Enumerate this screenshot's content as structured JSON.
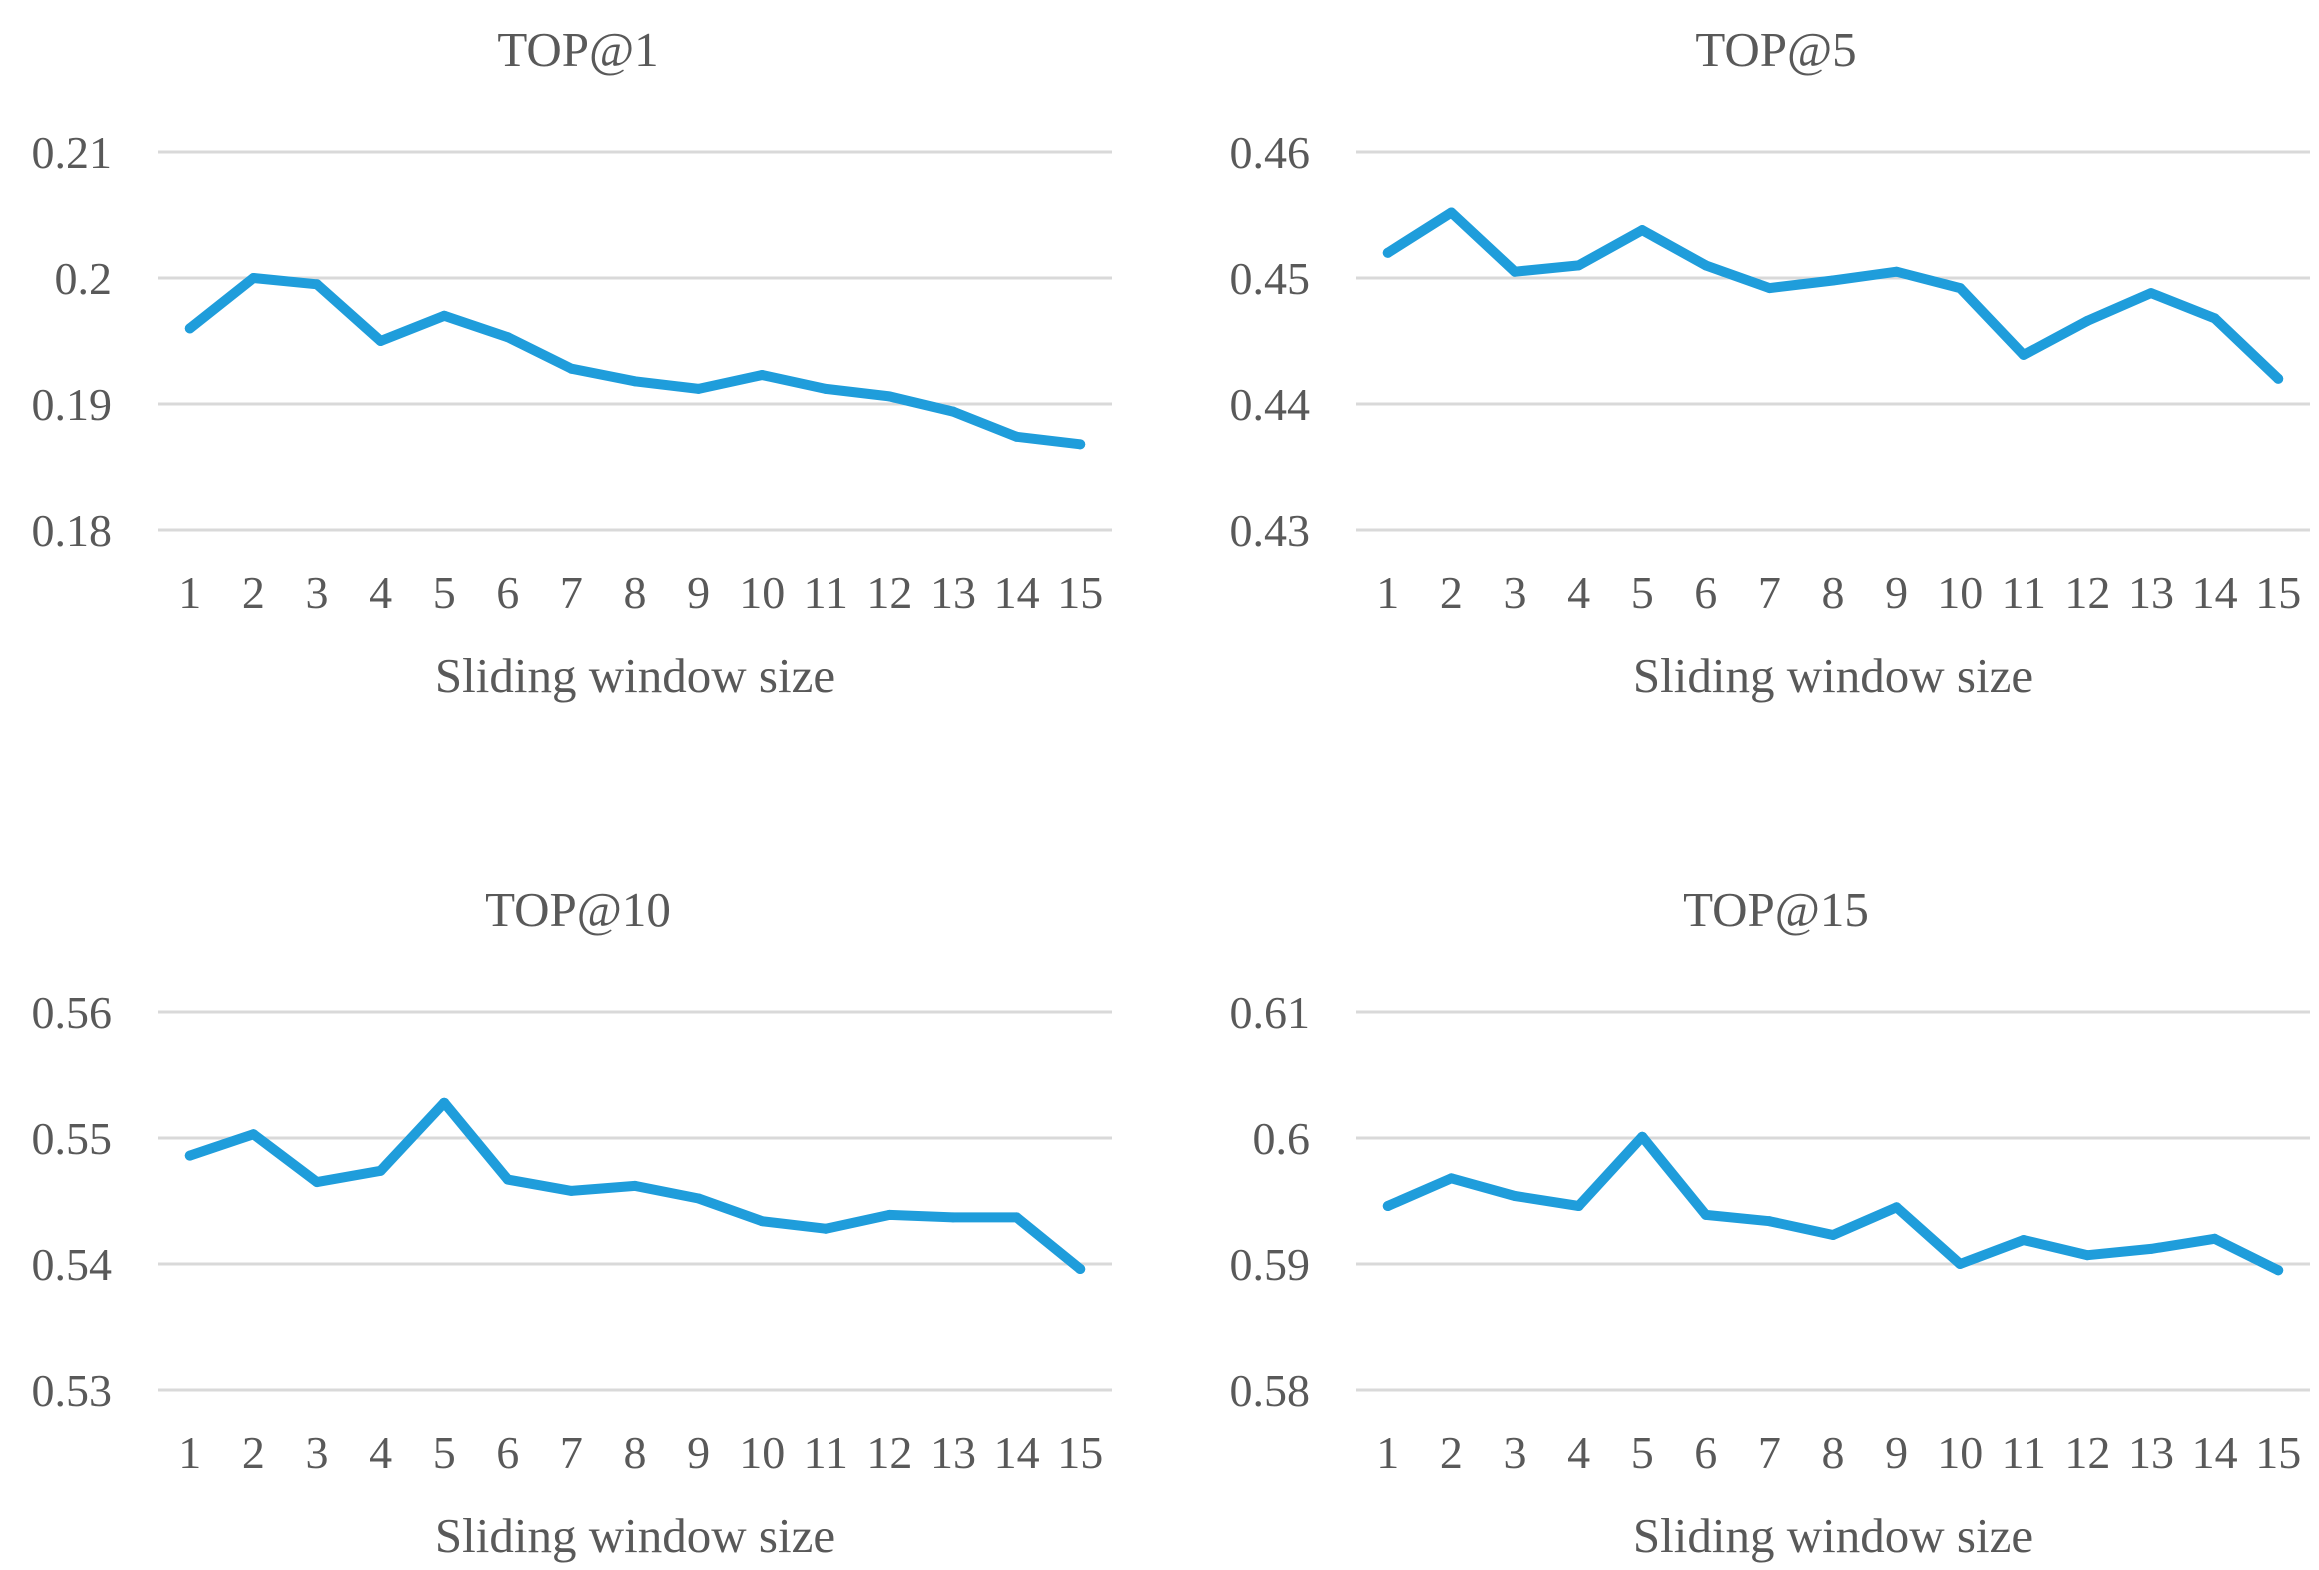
{
  "colors": {
    "series": "#1f9ddb",
    "grid": "#d9d9d9",
    "text": "#595959"
  },
  "chart_data": [
    {
      "type": "line",
      "title": "TOP@1",
      "xlabel": "Sliding window size",
      "ylabel": "",
      "categories": [
        "1",
        "2",
        "3",
        "4",
        "5",
        "6",
        "7",
        "8",
        "9",
        "10",
        "11",
        "12",
        "13",
        "14",
        "15"
      ],
      "ylim": [
        0.18,
        0.21
      ],
      "yticks": [
        "0.18",
        "0.19",
        "0.2",
        "0.21"
      ],
      "grid": true,
      "legend": false,
      "series": [
        {
          "values": [
            0.196,
            0.2,
            0.1995,
            0.195,
            0.197,
            0.1953,
            0.1928,
            0.1918,
            0.1912,
            0.1923,
            0.1912,
            0.1906,
            0.1894,
            0.1874,
            0.1868
          ]
        }
      ]
    },
    {
      "type": "line",
      "title": "TOP@5",
      "xlabel": "Sliding window size",
      "ylabel": "",
      "categories": [
        "1",
        "2",
        "3",
        "4",
        "5",
        "6",
        "7",
        "8",
        "9",
        "10",
        "11",
        "12",
        "13",
        "14",
        "15"
      ],
      "ylim": [
        0.43,
        0.46
      ],
      "yticks": [
        "0.43",
        "0.44",
        "0.45",
        "0.46"
      ],
      "grid": true,
      "legend": false,
      "series": [
        {
          "values": [
            0.452,
            0.4552,
            0.4505,
            0.451,
            0.4538,
            0.451,
            0.4492,
            0.4498,
            0.4505,
            0.4492,
            0.4439,
            0.4466,
            0.4488,
            0.4468,
            0.442
          ]
        }
      ]
    },
    {
      "type": "line",
      "title": "TOP@10",
      "xlabel": "Sliding window size",
      "ylabel": "",
      "categories": [
        "1",
        "2",
        "3",
        "4",
        "5",
        "6",
        "7",
        "8",
        "9",
        "10",
        "11",
        "12",
        "13",
        "14",
        "15"
      ],
      "ylim": [
        0.53,
        0.56
      ],
      "yticks": [
        "0.53",
        "0.54",
        "0.55",
        "0.56"
      ],
      "grid": true,
      "legend": false,
      "series": [
        {
          "values": [
            0.5486,
            0.5503,
            0.5465,
            0.5474,
            0.5528,
            0.5467,
            0.5458,
            0.5462,
            0.5452,
            0.5434,
            0.5428,
            0.5439,
            0.5437,
            0.5437,
            0.5396
          ]
        }
      ]
    },
    {
      "type": "line",
      "title": "TOP@15",
      "xlabel": "Sliding window size",
      "ylabel": "",
      "categories": [
        "1",
        "2",
        "3",
        "4",
        "5",
        "6",
        "7",
        "8",
        "9",
        "10",
        "11",
        "12",
        "13",
        "14",
        "15"
      ],
      "ylim": [
        0.58,
        0.61
      ],
      "yticks": [
        "0.58",
        "0.59",
        "0.6",
        "0.61"
      ],
      "grid": true,
      "legend": false,
      "series": [
        {
          "values": [
            0.5946,
            0.5968,
            0.5954,
            0.5946,
            0.6001,
            0.5939,
            0.5934,
            0.5923,
            0.5945,
            0.59,
            0.5919,
            0.5907,
            0.5912,
            0.592,
            0.5895
          ]
        }
      ]
    }
  ]
}
